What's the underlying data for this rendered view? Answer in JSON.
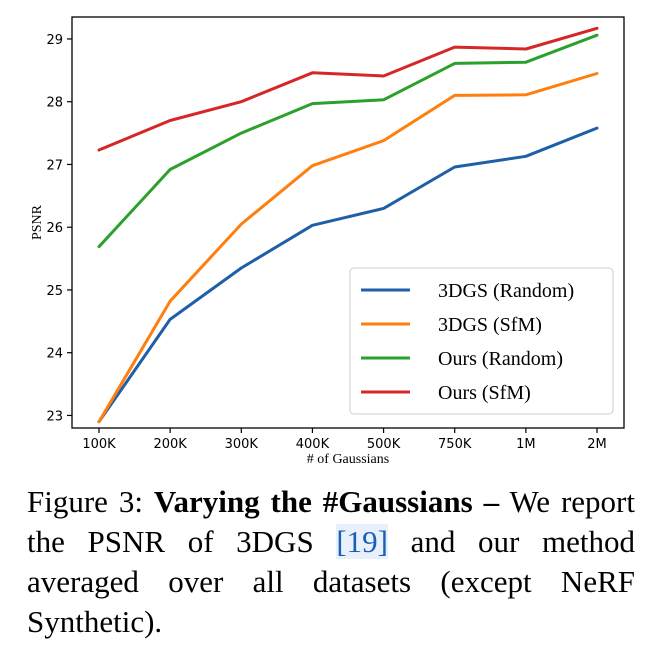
{
  "chart_data": {
    "type": "line",
    "xlabel": "# of Gaussians",
    "ylabel": "PSNR",
    "categories": [
      "100K",
      "200K",
      "300K",
      "400K",
      "500K",
      "750K",
      "1M",
      "2M"
    ],
    "ylim": [
      22.8,
      29.35
    ],
    "yticks": [
      23,
      24,
      25,
      26,
      27,
      28,
      29
    ],
    "grid": false,
    "legend_position": "lower-right",
    "series": [
      {
        "name": "3DGS (Random)",
        "color": "#1f5fa8",
        "values": [
          22.9,
          24.53,
          25.35,
          26.03,
          26.3,
          26.96,
          27.13,
          27.58
        ]
      },
      {
        "name": "3DGS (SfM)",
        "color": "#ff7f0e",
        "values": [
          22.9,
          24.82,
          26.05,
          26.98,
          27.38,
          28.1,
          28.11,
          28.45
        ]
      },
      {
        "name": "Ours (Random)",
        "color": "#2ca02c",
        "values": [
          25.69,
          26.92,
          27.5,
          27.97,
          28.03,
          28.61,
          28.63,
          29.06
        ]
      },
      {
        "name": "Ours (SfM)",
        "color": "#d62728",
        "values": [
          27.23,
          27.7,
          28.0,
          28.46,
          28.41,
          28.87,
          28.84,
          29.17
        ]
      }
    ]
  },
  "caption": {
    "figure_label": "Figure 3:",
    "title": "Varying the #Gaussians –",
    "text_before_cite": "We report the PSNR of 3DGS",
    "citation": "[19]",
    "text_after_cite": "and our method averaged over all datasets (except NeRF Synthetic)."
  }
}
